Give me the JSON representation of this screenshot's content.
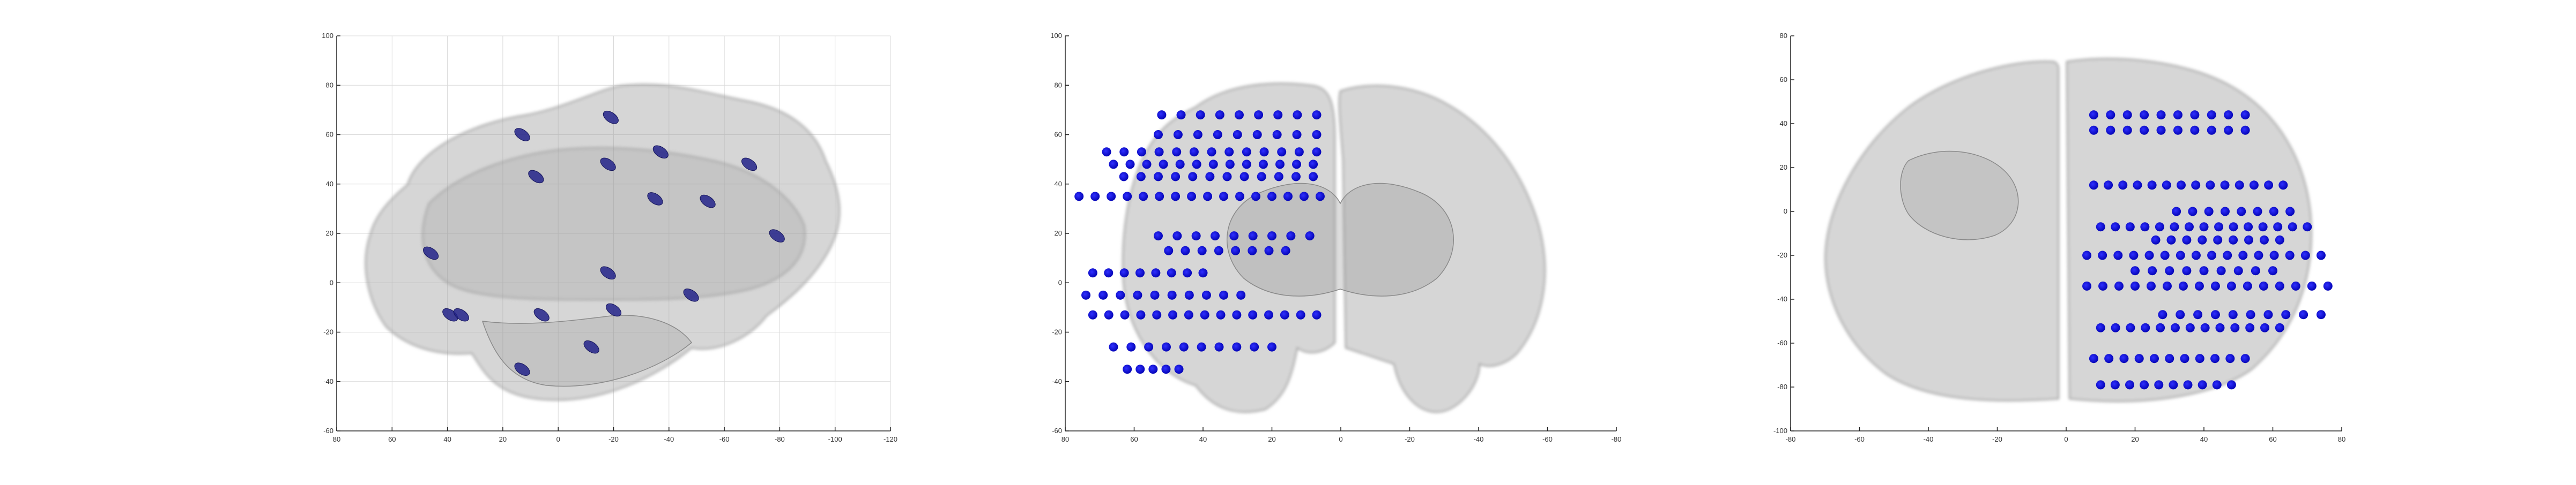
{
  "colors": {
    "electrode": "#0b0bd0",
    "electrode_dark": "#23238a",
    "brain_fill": "#9a9a9a",
    "brain_stroke": "#7a7a7a",
    "axis": "#222222",
    "grid": "#d9d9d9"
  },
  "chart_data": [
    {
      "type": "scatter",
      "view": "sagittal",
      "grid": true,
      "xlim": [
        80,
        -120
      ],
      "ylim": [
        -60,
        100
      ],
      "x_ticks": [
        "80",
        "60",
        "40",
        "20",
        "0",
        "-20",
        "-40",
        "-60",
        "-80",
        "-100",
        "-120"
      ],
      "y_ticks": [
        "100",
        "80",
        "60",
        "40",
        "20",
        "0",
        "-20",
        "-40",
        "-60"
      ],
      "electrodes": [
        [
          13,
          60
        ],
        [
          -19,
          67
        ],
        [
          8,
          43
        ],
        [
          -18,
          48
        ],
        [
          -37,
          53
        ],
        [
          -69,
          48
        ],
        [
          -35,
          34
        ],
        [
          -54,
          33
        ],
        [
          -79,
          19
        ],
        [
          46,
          12
        ],
        [
          -18,
          4
        ],
        [
          -48,
          -5
        ],
        [
          -20,
          -11
        ],
        [
          39,
          -13
        ],
        [
          35,
          -13
        ],
        [
          6,
          -13
        ],
        [
          -12,
          -26
        ],
        [
          13,
          -35
        ]
      ]
    },
    {
      "type": "scatter",
      "view": "coronal",
      "grid": false,
      "xlim": [
        80,
        -80
      ],
      "ylim": [
        -60,
        100
      ],
      "x_ticks": [
        "80",
        "60",
        "40",
        "20",
        "0",
        "-20",
        "-40",
        "-60",
        "-80"
      ],
      "y_ticks": [
        "100",
        "80",
        "60",
        "40",
        "20",
        "0",
        "-20",
        "-40",
        "-60"
      ],
      "electrode_rows": [
        {
          "y": 68,
          "x_from": 52,
          "x_to": 7,
          "n": 9
        },
        {
          "y": 60,
          "x_from": 53,
          "x_to": 7,
          "n": 9
        },
        {
          "y": 53,
          "x_from": 68,
          "x_to": 7,
          "n": 13
        },
        {
          "y": 48,
          "x_from": 66,
          "x_to": 8,
          "n": 13
        },
        {
          "y": 43,
          "x_from": 63,
          "x_to": 8,
          "n": 12
        },
        {
          "y": 35,
          "x_from": 76,
          "x_to": 6,
          "n": 16
        },
        {
          "y": 19,
          "x_from": 53,
          "x_to": 9,
          "n": 9
        },
        {
          "y": 13,
          "x_from": 50,
          "x_to": 16,
          "n": 8
        },
        {
          "y": 4,
          "x_from": 72,
          "x_to": 40,
          "n": 8
        },
        {
          "y": -5,
          "x_from": 74,
          "x_to": 29,
          "n": 10
        },
        {
          "y": -13,
          "x_from": 72,
          "x_to": 7,
          "n": 15
        },
        {
          "y": -26,
          "x_from": 66,
          "x_to": 20,
          "n": 10
        },
        {
          "y": -35,
          "x_from": 62,
          "x_to": 47,
          "n": 5
        }
      ]
    },
    {
      "type": "scatter",
      "view": "axial",
      "grid": false,
      "xlim": [
        -80,
        80
      ],
      "ylim": [
        -100,
        80
      ],
      "x_ticks": [
        "-80",
        "-60",
        "-40",
        "-20",
        "0",
        "20",
        "40",
        "60",
        "80"
      ],
      "y_ticks": [
        "80",
        "60",
        "40",
        "20",
        "0",
        "-20",
        "-40",
        "-60",
        "-80",
        "-100"
      ],
      "electrode_rows": [
        {
          "y": 44,
          "x_from": 8,
          "x_to": 52,
          "n": 10
        },
        {
          "y": 37,
          "x_from": 8,
          "x_to": 52,
          "n": 10
        },
        {
          "y": 12,
          "x_from": 8,
          "x_to": 63,
          "n": 14
        },
        {
          "y": 0,
          "x_from": 32,
          "x_to": 65,
          "n": 8
        },
        {
          "y": -7,
          "x_from": 10,
          "x_to": 70,
          "n": 15
        },
        {
          "y": -13,
          "x_from": 26,
          "x_to": 62,
          "n": 9
        },
        {
          "y": -20,
          "x_from": 6,
          "x_to": 74,
          "n": 16
        },
        {
          "y": -27,
          "x_from": 20,
          "x_to": 60,
          "n": 9
        },
        {
          "y": -34,
          "x_from": 6,
          "x_to": 76,
          "n": 16
        },
        {
          "y": -47,
          "x_from": 28,
          "x_to": 74,
          "n": 10
        },
        {
          "y": -53,
          "x_from": 10,
          "x_to": 62,
          "n": 13
        },
        {
          "y": -67,
          "x_from": 8,
          "x_to": 52,
          "n": 11
        },
        {
          "y": -79,
          "x_from": 10,
          "x_to": 48,
          "n": 10
        }
      ]
    }
  ]
}
